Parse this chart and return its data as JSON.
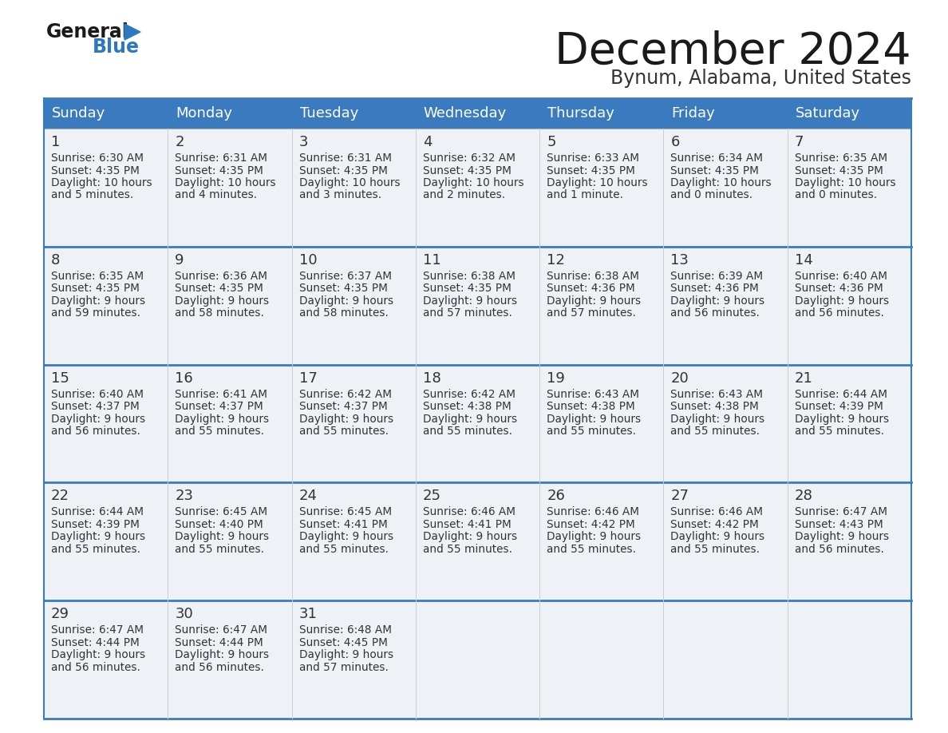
{
  "title": "December 2024",
  "subtitle": "Bynum, Alabama, United States",
  "days_of_week": [
    "Sunday",
    "Monday",
    "Tuesday",
    "Wednesday",
    "Thursday",
    "Friday",
    "Saturday"
  ],
  "header_bg": "#3a7abf",
  "header_text_color": "#ffffff",
  "row_bg_light": "#eef2f7",
  "cell_border_color": "#3a7abf",
  "text_color": "#333333",
  "title_color": "#1a1a1a",
  "subtitle_color": "#333333",
  "weeks": [
    [
      {
        "day": "1",
        "sunrise": "6:30 AM",
        "sunset": "4:35 PM",
        "daylight_line1": "Daylight: 10 hours",
        "daylight_line2": "and 5 minutes."
      },
      {
        "day": "2",
        "sunrise": "6:31 AM",
        "sunset": "4:35 PM",
        "daylight_line1": "Daylight: 10 hours",
        "daylight_line2": "and 4 minutes."
      },
      {
        "day": "3",
        "sunrise": "6:31 AM",
        "sunset": "4:35 PM",
        "daylight_line1": "Daylight: 10 hours",
        "daylight_line2": "and 3 minutes."
      },
      {
        "day": "4",
        "sunrise": "6:32 AM",
        "sunset": "4:35 PM",
        "daylight_line1": "Daylight: 10 hours",
        "daylight_line2": "and 2 minutes."
      },
      {
        "day": "5",
        "sunrise": "6:33 AM",
        "sunset": "4:35 PM",
        "daylight_line1": "Daylight: 10 hours",
        "daylight_line2": "and 1 minute."
      },
      {
        "day": "6",
        "sunrise": "6:34 AM",
        "sunset": "4:35 PM",
        "daylight_line1": "Daylight: 10 hours",
        "daylight_line2": "and 0 minutes."
      },
      {
        "day": "7",
        "sunrise": "6:35 AM",
        "sunset": "4:35 PM",
        "daylight_line1": "Daylight: 10 hours",
        "daylight_line2": "and 0 minutes."
      }
    ],
    [
      {
        "day": "8",
        "sunrise": "6:35 AM",
        "sunset": "4:35 PM",
        "daylight_line1": "Daylight: 9 hours",
        "daylight_line2": "and 59 minutes."
      },
      {
        "day": "9",
        "sunrise": "6:36 AM",
        "sunset": "4:35 PM",
        "daylight_line1": "Daylight: 9 hours",
        "daylight_line2": "and 58 minutes."
      },
      {
        "day": "10",
        "sunrise": "6:37 AM",
        "sunset": "4:35 PM",
        "daylight_line1": "Daylight: 9 hours",
        "daylight_line2": "and 58 minutes."
      },
      {
        "day": "11",
        "sunrise": "6:38 AM",
        "sunset": "4:35 PM",
        "daylight_line1": "Daylight: 9 hours",
        "daylight_line2": "and 57 minutes."
      },
      {
        "day": "12",
        "sunrise": "6:38 AM",
        "sunset": "4:36 PM",
        "daylight_line1": "Daylight: 9 hours",
        "daylight_line2": "and 57 minutes."
      },
      {
        "day": "13",
        "sunrise": "6:39 AM",
        "sunset": "4:36 PM",
        "daylight_line1": "Daylight: 9 hours",
        "daylight_line2": "and 56 minutes."
      },
      {
        "day": "14",
        "sunrise": "6:40 AM",
        "sunset": "4:36 PM",
        "daylight_line1": "Daylight: 9 hours",
        "daylight_line2": "and 56 minutes."
      }
    ],
    [
      {
        "day": "15",
        "sunrise": "6:40 AM",
        "sunset": "4:37 PM",
        "daylight_line1": "Daylight: 9 hours",
        "daylight_line2": "and 56 minutes."
      },
      {
        "day": "16",
        "sunrise": "6:41 AM",
        "sunset": "4:37 PM",
        "daylight_line1": "Daylight: 9 hours",
        "daylight_line2": "and 55 minutes."
      },
      {
        "day": "17",
        "sunrise": "6:42 AM",
        "sunset": "4:37 PM",
        "daylight_line1": "Daylight: 9 hours",
        "daylight_line2": "and 55 minutes."
      },
      {
        "day": "18",
        "sunrise": "6:42 AM",
        "sunset": "4:38 PM",
        "daylight_line1": "Daylight: 9 hours",
        "daylight_line2": "and 55 minutes."
      },
      {
        "day": "19",
        "sunrise": "6:43 AM",
        "sunset": "4:38 PM",
        "daylight_line1": "Daylight: 9 hours",
        "daylight_line2": "and 55 minutes."
      },
      {
        "day": "20",
        "sunrise": "6:43 AM",
        "sunset": "4:38 PM",
        "daylight_line1": "Daylight: 9 hours",
        "daylight_line2": "and 55 minutes."
      },
      {
        "day": "21",
        "sunrise": "6:44 AM",
        "sunset": "4:39 PM",
        "daylight_line1": "Daylight: 9 hours",
        "daylight_line2": "and 55 minutes."
      }
    ],
    [
      {
        "day": "22",
        "sunrise": "6:44 AM",
        "sunset": "4:39 PM",
        "daylight_line1": "Daylight: 9 hours",
        "daylight_line2": "and 55 minutes."
      },
      {
        "day": "23",
        "sunrise": "6:45 AM",
        "sunset": "4:40 PM",
        "daylight_line1": "Daylight: 9 hours",
        "daylight_line2": "and 55 minutes."
      },
      {
        "day": "24",
        "sunrise": "6:45 AM",
        "sunset": "4:41 PM",
        "daylight_line1": "Daylight: 9 hours",
        "daylight_line2": "and 55 minutes."
      },
      {
        "day": "25",
        "sunrise": "6:46 AM",
        "sunset": "4:41 PM",
        "daylight_line1": "Daylight: 9 hours",
        "daylight_line2": "and 55 minutes."
      },
      {
        "day": "26",
        "sunrise": "6:46 AM",
        "sunset": "4:42 PM",
        "daylight_line1": "Daylight: 9 hours",
        "daylight_line2": "and 55 minutes."
      },
      {
        "day": "27",
        "sunrise": "6:46 AM",
        "sunset": "4:42 PM",
        "daylight_line1": "Daylight: 9 hours",
        "daylight_line2": "and 55 minutes."
      },
      {
        "day": "28",
        "sunrise": "6:47 AM",
        "sunset": "4:43 PM",
        "daylight_line1": "Daylight: 9 hours",
        "daylight_line2": "and 56 minutes."
      }
    ],
    [
      {
        "day": "29",
        "sunrise": "6:47 AM",
        "sunset": "4:44 PM",
        "daylight_line1": "Daylight: 9 hours",
        "daylight_line2": "and 56 minutes."
      },
      {
        "day": "30",
        "sunrise": "6:47 AM",
        "sunset": "4:44 PM",
        "daylight_line1": "Daylight: 9 hours",
        "daylight_line2": "and 56 minutes."
      },
      {
        "day": "31",
        "sunrise": "6:48 AM",
        "sunset": "4:45 PM",
        "daylight_line1": "Daylight: 9 hours",
        "daylight_line2": "and 57 minutes."
      },
      null,
      null,
      null,
      null
    ]
  ]
}
